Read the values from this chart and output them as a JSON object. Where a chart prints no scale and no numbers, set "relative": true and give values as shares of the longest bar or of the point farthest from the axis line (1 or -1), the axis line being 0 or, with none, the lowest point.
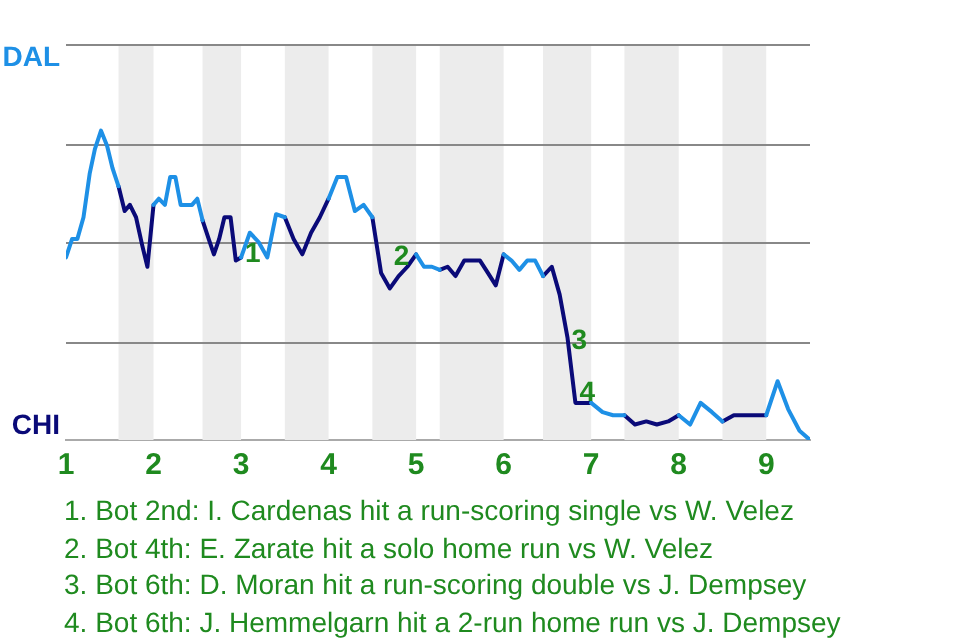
{
  "chart_data": {
    "type": "line",
    "relative": true,
    "x": [
      1,
      1.07,
      1.13,
      1.2,
      1.27,
      1.33,
      1.4,
      1.47,
      1.53,
      1.6,
      1.67,
      1.73,
      1.8,
      1.87,
      1.93,
      2,
      2.06,
      2.13,
      2.19,
      2.25,
      2.31,
      2.38,
      2.44,
      2.5,
      2.56,
      2.63,
      2.69,
      2.75,
      2.81,
      2.88,
      2.94,
      3,
      3.1,
      3.2,
      3.3,
      3.4,
      3.5,
      3.6,
      3.7,
      3.8,
      3.9,
      4,
      4.1,
      4.2,
      4.3,
      4.4,
      4.5,
      4.6,
      4.7,
      4.8,
      4.9,
      5,
      5.09,
      5.18,
      5.27,
      5.36,
      5.45,
      5.55,
      5.64,
      5.73,
      5.82,
      5.91,
      6,
      6.09,
      6.18,
      6.27,
      6.36,
      6.45,
      6.55,
      6.64,
      6.73,
      6.82,
      6.91,
      7,
      7.13,
      7.25,
      7.38,
      7.5,
      7.63,
      7.75,
      7.88,
      8,
      8.13,
      8.25,
      8.38,
      8.5,
      8.63,
      8.75,
      8.88,
      9,
      9.13,
      9.25,
      9.38,
      9.5
    ],
    "xlim": [
      1,
      9.5
    ],
    "xticks": [
      1,
      2,
      3,
      4,
      5,
      6,
      7,
      8,
      9
    ],
    "grid": "y",
    "legend": false,
    "marker": "none",
    "line_style": "solid",
    "bands": [
      {
        "axis": "x",
        "from": 1.6,
        "to": 2,
        "color": "#ececec"
      },
      {
        "axis": "x",
        "from": 2.56,
        "to": 3,
        "color": "#ececec"
      },
      {
        "axis": "x",
        "from": 3.5,
        "to": 4,
        "color": "#ececec"
      },
      {
        "axis": "x",
        "from": 4.5,
        "to": 5,
        "color": "#ececec"
      },
      {
        "axis": "x",
        "from": 5.27,
        "to": 6,
        "color": "#ececec"
      },
      {
        "axis": "x",
        "from": 6.45,
        "to": 7,
        "color": "#ececec"
      },
      {
        "axis": "x",
        "from": 7.38,
        "to": 8,
        "color": "#ececec"
      },
      {
        "axis": "x",
        "from": 8.5,
        "to": 9,
        "color": "#ececec"
      }
    ],
    "series": [
      {
        "name": "DAL",
        "color": "#1e90e6",
        "values": [
          0.59,
          0.65,
          0.65,
          0.72,
          0.86,
          0.94,
          1,
          0.95,
          0.88,
          0.82,
          null,
          null,
          null,
          null,
          null,
          0.76,
          0.78,
          0.76,
          0.85,
          0.85,
          0.76,
          0.76,
          0.76,
          0.78,
          0.71,
          null,
          null,
          null,
          null,
          null,
          null,
          0.59,
          0.67,
          0.64,
          0.59,
          0.73,
          0.72,
          null,
          null,
          null,
          null,
          0.78,
          0.85,
          0.85,
          0.74,
          0.76,
          0.72,
          null,
          null,
          null,
          null,
          0.6,
          0.56,
          0.56,
          0.55,
          null,
          null,
          null,
          null,
          null,
          null,
          null,
          0.6,
          0.58,
          0.55,
          0.58,
          0.58,
          0.53,
          null,
          null,
          null,
          null,
          null,
          0.12,
          0.09,
          0.08,
          0.08,
          null,
          null,
          null,
          null,
          0.08,
          0.05,
          0.12,
          0.09,
          0.06,
          null,
          null,
          null,
          0.08,
          0.19,
          0.1,
          0.03,
          0
        ]
      },
      {
        "name": "CHI",
        "color": "#0a0a78",
        "values": [
          null,
          null,
          null,
          null,
          null,
          null,
          null,
          null,
          null,
          0.82,
          0.74,
          0.76,
          0.72,
          0.63,
          0.56,
          0.76,
          null,
          null,
          null,
          null,
          null,
          null,
          null,
          null,
          0.71,
          0.65,
          0.6,
          0.65,
          0.72,
          0.72,
          0.58,
          0.59,
          null,
          null,
          null,
          null,
          0.72,
          0.65,
          0.6,
          0.67,
          0.72,
          0.78,
          null,
          null,
          null,
          null,
          0.72,
          0.54,
          0.49,
          0.53,
          0.56,
          0.6,
          null,
          null,
          0.55,
          0.56,
          0.53,
          0.58,
          0.58,
          0.58,
          0.54,
          0.5,
          0.6,
          null,
          null,
          null,
          null,
          0.53,
          0.56,
          0.47,
          0.33,
          0.12,
          0.12,
          0.12,
          null,
          null,
          0.08,
          0.05,
          0.06,
          0.05,
          0.06,
          0.08,
          null,
          null,
          null,
          0.06,
          0.08,
          0.08,
          0.08,
          0.08,
          null,
          null,
          null,
          null
        ]
      }
    ],
    "annotations": [
      {
        "text": "1",
        "x": 3,
        "y": 0.6
      },
      {
        "text": "2",
        "x": 4.7,
        "y": 0.59
      },
      {
        "text": "3",
        "x": 6.73,
        "y": 0.32
      },
      {
        "text": "4",
        "x": 6.82,
        "y": 0.15
      },
      "1. Bot 2nd: I. Cardenas hit a run-scoring single vs W. Velez",
      "2. Bot 4th: E. Zarate hit a solo home run vs W. Velez",
      "3. Bot 6th: D. Moran hit a run-scoring double vs J. Dempsey",
      "4. Bot 6th: J. Hemmelgarn hit a 2-run home run vs J. Dempsey"
    ]
  }
}
